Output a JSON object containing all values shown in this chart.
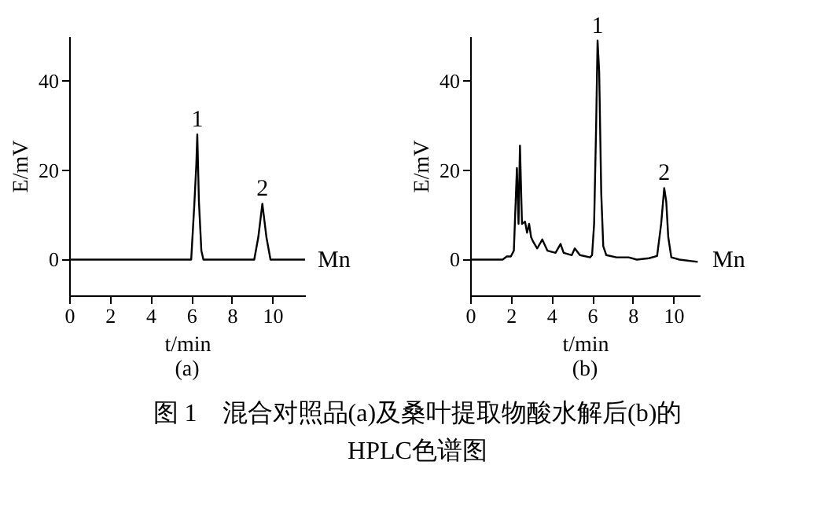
{
  "chart_data": [
    {
      "type": "line",
      "title": "(a)",
      "xlabel": "t/min",
      "ylabel": "E/mV",
      "x": [
        0,
        6.0,
        6.15,
        6.25,
        6.3,
        6.38,
        6.5,
        6.6,
        9.1,
        9.3,
        9.5,
        9.7,
        9.9,
        11.6
      ],
      "series": [
        {
          "color": "#000000",
          "values": [
            0,
            0,
            12,
            21,
            28,
            13,
            2,
            0,
            0,
            5,
            12.5,
            5,
            0,
            0
          ]
        }
      ],
      "xlim": [
        0,
        11.6
      ],
      "xticks": [
        0,
        2,
        4,
        6,
        8,
        10
      ],
      "ylim": [
        -8,
        50
      ],
      "yticks": [
        0,
        20,
        40
      ],
      "annotations": [
        {
          "text": "1",
          "x": 6.3,
          "y": 28
        },
        {
          "text": "2",
          "x": 9.5,
          "y": 12.5
        },
        {
          "text": "Mn",
          "x": 11.6,
          "y": 0
        },
        "图 1　混合对照品(a)及桑叶提取物酸水解后(b)的HPLC色谱图"
      ]
    },
    {
      "type": "line",
      "title": "(b)",
      "xlabel": "t/min",
      "ylabel": "E/mV",
      "x": [
        0,
        1.6,
        1.8,
        2.0,
        2.15,
        2.3,
        2.38,
        2.45,
        2.55,
        2.7,
        2.8,
        2.9,
        3.0,
        3.1,
        3.3,
        3.55,
        3.8,
        4.2,
        4.45,
        4.6,
        5.0,
        5.15,
        5.4,
        5.9,
        6.0,
        6.1,
        6.2,
        6.27,
        6.35,
        6.45,
        6.55,
        6.7,
        7.2,
        7.8,
        8.2,
        8.8,
        9.2,
        9.4,
        9.55,
        9.65,
        9.75,
        9.9,
        10.3,
        11.2
      ],
      "series": [
        {
          "color": "#000000",
          "values": [
            0,
            0,
            0.7,
            0.7,
            2,
            20.5,
            8,
            25.5,
            8,
            8.5,
            6,
            8,
            5,
            4,
            2.5,
            4.5,
            2,
            1.5,
            3.5,
            1.5,
            1,
            2.5,
            1,
            0.5,
            1,
            8,
            30,
            49,
            42,
            15,
            3,
            1,
            0.5,
            0.5,
            0,
            0.3,
            0.8,
            8,
            16,
            13,
            5,
            0.5,
            0,
            -0.5
          ]
        }
      ],
      "xlim": [
        0,
        11.3
      ],
      "xticks": [
        0,
        2,
        4,
        6,
        8,
        10
      ],
      "ylim": [
        -8,
        50
      ],
      "yticks": [
        0,
        20,
        40
      ],
      "annotations": [
        {
          "text": "1",
          "x": 6.27,
          "y": 49
        },
        {
          "text": "2",
          "x": 9.55,
          "y": 16
        },
        {
          "text": "Mn",
          "x": 11.3,
          "y": 0
        }
      ]
    }
  ]
}
